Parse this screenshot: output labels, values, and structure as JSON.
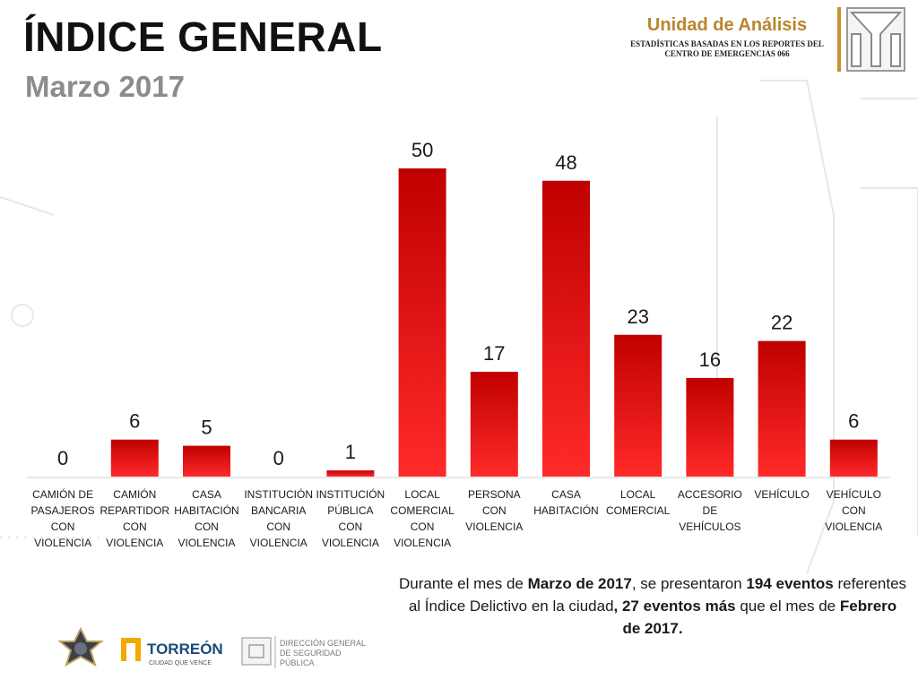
{
  "header": {
    "title": "ÍNDICE GENERAL",
    "subtitle": "Marzo 2017"
  },
  "unit": {
    "title": "Unidad de Análisis",
    "line1": "ESTADÍSTICAS BASADAS EN LOS REPORTES DEL",
    "line2": "CENTRO DE EMERGENCIAS 066"
  },
  "chart_data": {
    "type": "bar",
    "categories": [
      "CAMIÓN DE PASAJEROS CON VIOLENCIA",
      "CAMIÓN REPARTIDOR CON VIOLENCIA",
      "CASA HABITACIÓN CON VIOLENCIA",
      "INSTITUCIÓN BANCARIA CON VIOLENCIA",
      "INSTITUCIÓN PÚBLICA CON VIOLENCIA",
      "LOCAL COMERCIAL CON VIOLENCIA",
      "PERSONA CON VIOLENCIA",
      "CASA HABITACIÓN",
      "LOCAL COMERCIAL",
      "ACCESORIO DE VEHÍCULOS",
      "VEHÍCULO",
      "VEHÍCULO CON VIOLENCIA"
    ],
    "category_lines": [
      [
        "CAMIÓN DE",
        "PASAJEROS",
        "CON",
        "VIOLENCIA"
      ],
      [
        "CAMIÓN",
        "REPARTIDOR",
        "CON",
        "VIOLENCIA"
      ],
      [
        "CASA",
        "HABITACIÓN",
        "CON",
        "VIOLENCIA"
      ],
      [
        "INSTITUCIÓN",
        "BANCARIA",
        "CON",
        "VIOLENCIA"
      ],
      [
        "INSTITUCIÓN",
        "PÚBLICA",
        "CON",
        "VIOLENCIA"
      ],
      [
        "LOCAL",
        "COMERCIAL",
        "CON",
        "VIOLENCIA"
      ],
      [
        "PERSONA",
        "CON",
        "VIOLENCIA"
      ],
      [
        "CASA",
        "HABITACIÓN"
      ],
      [
        "LOCAL",
        "COMERCIAL"
      ],
      [
        "ACCESORIO",
        "DE",
        "VEHÍCULOS"
      ],
      [
        "VEHÍCULO"
      ],
      [
        "VEHÍCULO",
        "CON",
        "VIOLENCIA"
      ]
    ],
    "values": [
      0,
      6,
      5,
      0,
      1,
      50,
      17,
      48,
      23,
      16,
      22,
      6
    ],
    "ylim": [
      0,
      50
    ],
    "grid": false,
    "legend": "none",
    "bar_color_top": "#c00000",
    "bar_color_bottom": "#ff2a2a"
  },
  "summary": {
    "t1": "Durante el mes de ",
    "b1": "Marzo de 2017",
    "t2": ", se presentaron ",
    "b2": "194 eventos",
    "t3": " referentes al Índice Delictivo en la ciudad",
    "b3": ", 27 eventos más",
    "t4": " que el mes de ",
    "b4": "Febrero de 2017."
  },
  "footer": {
    "torreon_name": "TORREÓN",
    "torreon_slogan": "CIUDAD QUE VENCE",
    "dgsp_line1": "DIRECCIÓN GENERAL",
    "dgsp_line2": "DE SEGURIDAD",
    "dgsp_line3": "PÚBLICA"
  },
  "colors": {
    "accent_gold": "#c8932f",
    "bar_red": "#c00000"
  }
}
